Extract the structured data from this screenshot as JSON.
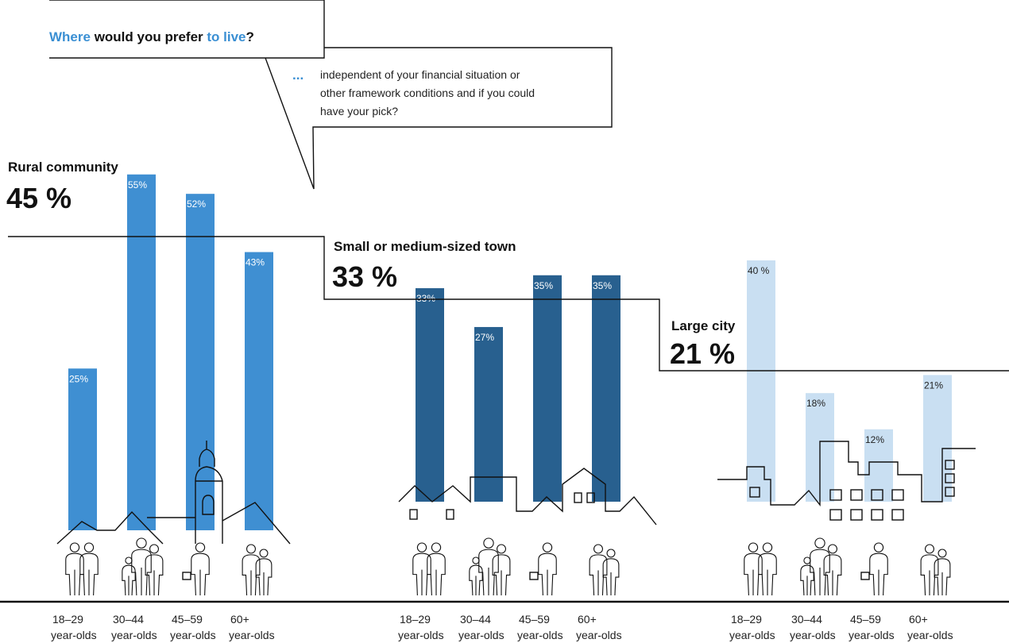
{
  "question": {
    "parts": [
      {
        "text": "Where",
        "accent": true
      },
      {
        "text": " would you prefer ",
        "accent": false
      },
      {
        "text": "to live",
        "accent": true
      },
      {
        "text": "?",
        "accent": false
      }
    ],
    "ellipsis": "...",
    "sub_lines": [
      "independent of your financial situation or",
      "other framework conditions and if you could",
      "have your pick?"
    ]
  },
  "colors": {
    "accent": "#3a8fd3",
    "rural": "#3f8fd2",
    "town": "#28608f",
    "city": "#c9dff2"
  },
  "chart_data": {
    "type": "bar",
    "title": "Where would you prefer to live?",
    "categories": [
      "18–29 year-olds",
      "30–44 year-olds",
      "45–59 year-olds",
      "60+ year-olds"
    ],
    "series": [
      {
        "name": "Rural community",
        "total": 45,
        "total_label": "45 %",
        "values": [
          25,
          55,
          52,
          43
        ],
        "labels": [
          "25%",
          "55%",
          "52%",
          "43%"
        ]
      },
      {
        "name": "Small or medium-sized town",
        "total": 33,
        "total_label": "33 %",
        "values": [
          33,
          27,
          35,
          35
        ],
        "labels": [
          "33%",
          "27%",
          "35%",
          "35%"
        ]
      },
      {
        "name": "Large city",
        "total": 21,
        "total_label": "21 %",
        "values": [
          40,
          18,
          12,
          21
        ],
        "labels": [
          "40 %",
          "18%",
          "12%",
          "21%"
        ]
      }
    ],
    "age_groups": [
      {
        "line1": "18–29",
        "line2": "year-olds"
      },
      {
        "line1": "30–44",
        "line2": "year-olds"
      },
      {
        "line1": "45–59",
        "line2": "year-olds"
      },
      {
        "line1": "60+",
        "line2": "year-olds"
      }
    ]
  }
}
